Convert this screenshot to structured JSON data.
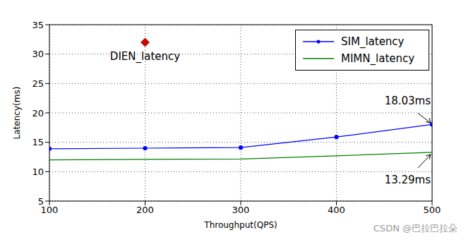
{
  "chart_data": {
    "type": "line",
    "x_label": "Throughput(QPS)",
    "y_label": "Latency(ms)",
    "x": [
      100,
      200,
      300,
      400,
      500
    ],
    "xlim": [
      100,
      500
    ],
    "xticks": [
      100,
      200,
      300,
      400,
      500
    ],
    "ylim": [
      5,
      35
    ],
    "yticks": [
      5,
      10,
      15,
      20,
      25,
      30,
      35
    ],
    "grid": true,
    "legend": "upper right",
    "series": [
      {
        "name": "SIM_latency",
        "color": "#0000ff",
        "marker": "circle",
        "values": [
          13.9,
          14.0,
          14.1,
          15.9,
          18.03
        ]
      },
      {
        "name": "MIMN_latency",
        "color": "#008000",
        "marker": "none",
        "values": [
          12.0,
          12.1,
          12.15,
          12.7,
          13.29
        ]
      }
    ],
    "annotations": [
      {
        "text": "DIEN_latency",
        "x": 200,
        "y": 32,
        "marker": "diamond",
        "color": "#dd0000"
      },
      {
        "text": "18.03ms",
        "x": 500,
        "y": 18.03
      },
      {
        "text": "13.29ms",
        "x": 500,
        "y": 13.29
      }
    ],
    "watermark": "CSDN @巴拉巴拉朵"
  }
}
